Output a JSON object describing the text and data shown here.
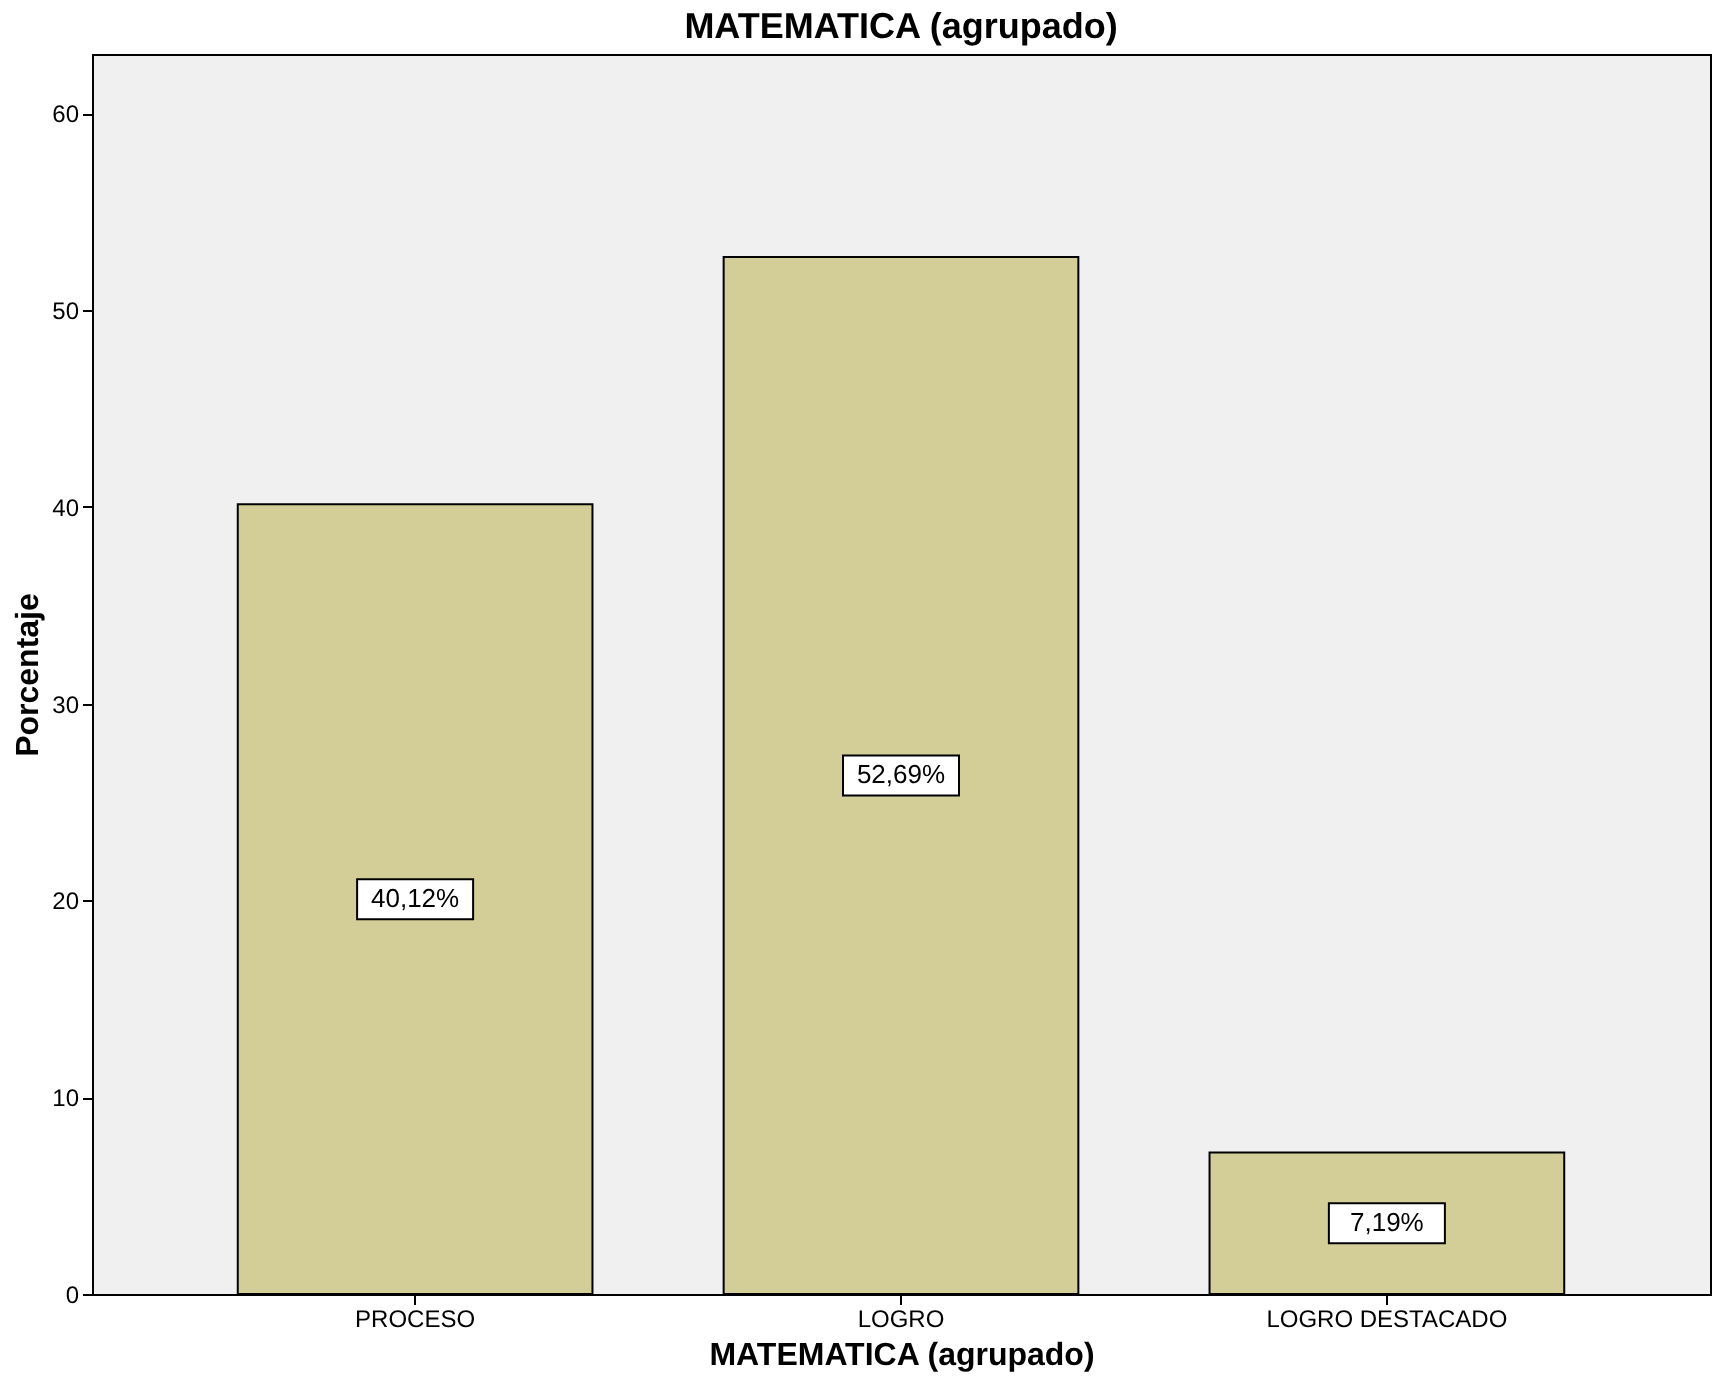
{
  "chart_data": {
    "type": "bar",
    "title": "MATEMATICA (agrupado)",
    "xlabel": "MATEMATICA (agrupado)",
    "ylabel": "Porcentaje",
    "categories": [
      "PROCESO",
      "LOGRO",
      "LOGRO DESTACADO"
    ],
    "values": [
      40.12,
      52.69,
      7.19
    ],
    "value_labels": [
      "40,12%",
      "52,69%",
      "7,19%"
    ],
    "color": "#d3ce97",
    "ylim": [
      0,
      63
    ],
    "yticks": [
      0,
      10,
      20,
      30,
      40,
      50,
      60
    ],
    "grid": false
  }
}
